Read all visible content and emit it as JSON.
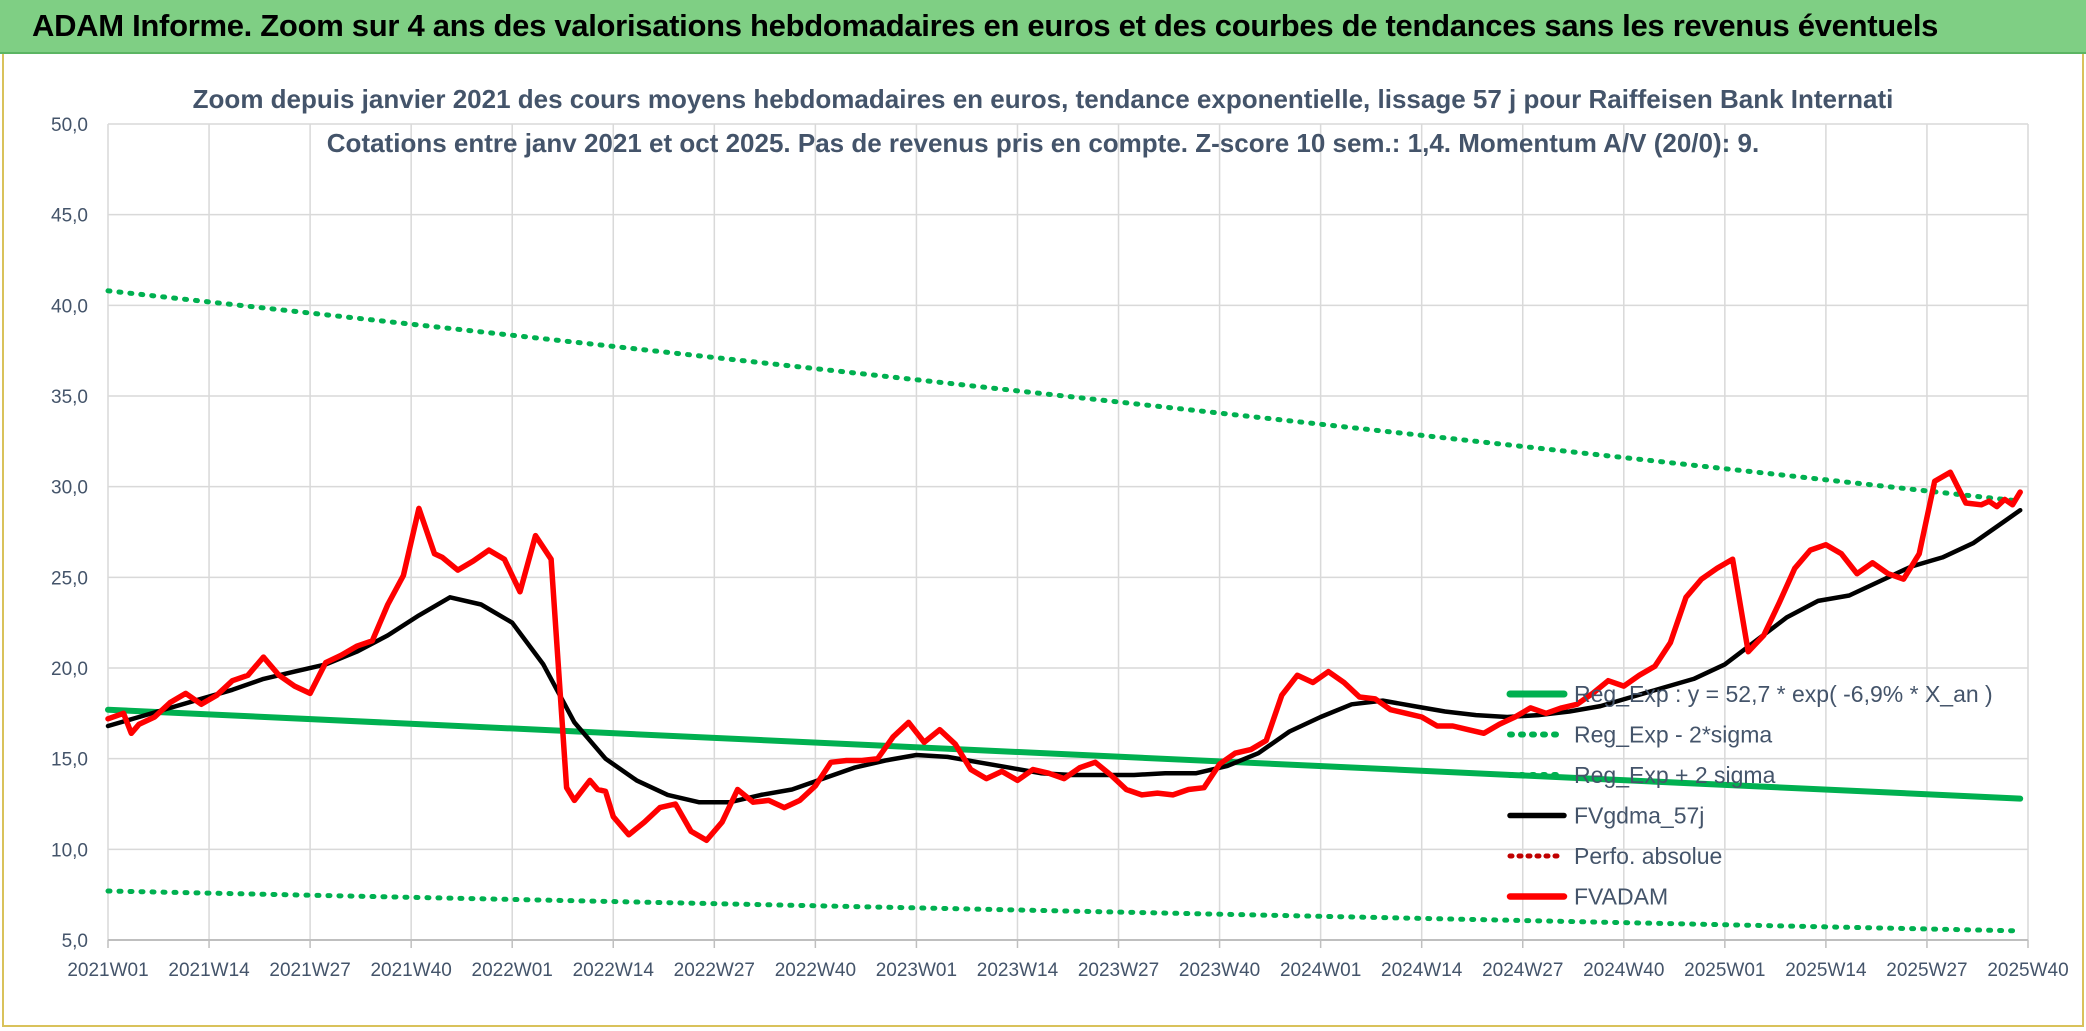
{
  "banner": {
    "title": "ADAM Informe. Zoom sur 4 ans des valorisations hebdomadaires en euros et des courbes de tendances sans les revenus éventuels"
  },
  "colors": {
    "banner_bg": "#7fcf84",
    "axis_text": "#44546a",
    "grid": "#d9d9d9",
    "reg_exp": "#00b050",
    "fvgdma": "#000000",
    "fvadam": "#ff0000",
    "perfo": "#c00000"
  },
  "chart_data": {
    "type": "line",
    "title": "Zoom depuis janvier 2021 des cours moyens hebdomadaires en euros, tendance exponentielle, lissage 57 j pour Raiffeisen Bank Internati",
    "subtitle": "Cotations entre janv 2021 et oct 2025. Pas de revenus pris en compte. Z-score 10 sem.: 1,4. Momentum A/V (20/0): 9.",
    "xlabel": "",
    "ylabel": "",
    "ylim": [
      5,
      50
    ],
    "yticks": [
      "5,0",
      "10,0",
      "15,0",
      "20,0",
      "25,0",
      "30,0",
      "35,0",
      "40,0",
      "45,0",
      "50,0"
    ],
    "x_range_weeks": [
      0,
      246
    ],
    "x_ticks": [
      {
        "label": "2021W01",
        "week": 0
      },
      {
        "label": "2021W14",
        "week": 13
      },
      {
        "label": "2021W27",
        "week": 26
      },
      {
        "label": "2021W40",
        "week": 39
      },
      {
        "label": "2022W01",
        "week": 52
      },
      {
        "label": "2022W14",
        "week": 65
      },
      {
        "label": "2022W27",
        "week": 78
      },
      {
        "label": "2022W40",
        "week": 91
      },
      {
        "label": "2023W01",
        "week": 104
      },
      {
        "label": "2023W14",
        "week": 117
      },
      {
        "label": "2023W27",
        "week": 130
      },
      {
        "label": "2023W40",
        "week": 143
      },
      {
        "label": "2024W01",
        "week": 156
      },
      {
        "label": "2024W14",
        "week": 169
      },
      {
        "label": "2024W27",
        "week": 182
      },
      {
        "label": "2024W40",
        "week": 195
      },
      {
        "label": "2025W01",
        "week": 208
      },
      {
        "label": "2025W14",
        "week": 221
      },
      {
        "label": "2025W27",
        "week": 234
      },
      {
        "label": "2025W40",
        "week": 247
      }
    ],
    "series": [
      {
        "name": "Reg_Exp : y = 52,7 * exp( -6,9% * X_an )",
        "style": "solid-thick",
        "color": "#00b050",
        "x": [
          0,
          246
        ],
        "values": [
          17.7,
          12.8
        ]
      },
      {
        "name": "Reg_Exp - 2*sigma",
        "style": "dotted",
        "color": "#00b050",
        "x": [
          0,
          246
        ],
        "values": [
          7.7,
          5.5
        ]
      },
      {
        "name": "Reg_Exp + 2 sigma",
        "style": "dotted",
        "color": "#00b050",
        "x": [
          0,
          246
        ],
        "values": [
          40.8,
          29.2
        ]
      },
      {
        "name": "FVgdma_57j",
        "style": "solid",
        "color": "#000000",
        "x": [
          0,
          4,
          8,
          12,
          16,
          20,
          24,
          28,
          32,
          36,
          40,
          44,
          48,
          52,
          56,
          60,
          64,
          68,
          72,
          76,
          80,
          84,
          88,
          92,
          96,
          100,
          104,
          108,
          112,
          116,
          120,
          124,
          128,
          132,
          136,
          140,
          144,
          148,
          152,
          156,
          160,
          164,
          168,
          172,
          176,
          180,
          184,
          188,
          192,
          196,
          200,
          204,
          208,
          212,
          216,
          220,
          224,
          228,
          232,
          236,
          240,
          244,
          246
        ],
        "values": [
          16.8,
          17.3,
          17.8,
          18.3,
          18.8,
          19.4,
          19.8,
          20.2,
          20.9,
          21.8,
          22.9,
          23.9,
          23.5,
          22.5,
          20.2,
          17.0,
          15.0,
          13.8,
          13.0,
          12.6,
          12.6,
          13.0,
          13.3,
          13.9,
          14.5,
          14.9,
          15.2,
          15.1,
          14.8,
          14.5,
          14.2,
          14.1,
          14.1,
          14.1,
          14.2,
          14.2,
          14.6,
          15.3,
          16.5,
          17.3,
          18.0,
          18.2,
          17.9,
          17.6,
          17.4,
          17.3,
          17.4,
          17.6,
          17.9,
          18.4,
          18.9,
          19.4,
          20.2,
          21.5,
          22.8,
          23.7,
          24.0,
          24.8,
          25.6,
          26.1,
          26.9,
          28.1,
          28.7
        ]
      },
      {
        "name": "Perfo. absolue",
        "style": "dotted",
        "color": "#c00000",
        "x": [],
        "values": []
      },
      {
        "name": "FVADAM",
        "style": "solid-thick",
        "color": "#ff0000",
        "x": [
          0,
          2,
          3,
          4,
          6,
          8,
          10,
          12,
          14,
          16,
          18,
          20,
          22,
          24,
          26,
          28,
          30,
          32,
          34,
          36,
          38,
          40,
          42,
          43,
          45,
          47,
          49,
          51,
          53,
          55,
          57,
          59,
          60,
          62,
          63,
          64,
          65,
          67,
          69,
          71,
          73,
          75,
          77,
          79,
          81,
          83,
          85,
          87,
          89,
          91,
          93,
          95,
          97,
          99,
          101,
          103,
          105,
          107,
          109,
          111,
          113,
          115,
          117,
          119,
          121,
          123,
          125,
          127,
          129,
          131,
          133,
          135,
          137,
          139,
          141,
          143,
          145,
          147,
          149,
          151,
          153,
          155,
          157,
          159,
          161,
          163,
          165,
          167,
          169,
          171,
          173,
          175,
          177,
          179,
          181,
          183,
          185,
          187,
          189,
          191,
          193,
          195,
          197,
          199,
          201,
          203,
          205,
          207,
          209,
          211,
          213,
          215,
          217,
          219,
          221,
          223,
          225,
          227,
          229,
          231,
          233,
          235,
          237,
          239,
          241,
          242,
          243,
          244,
          245,
          246
        ],
        "values": [
          17.2,
          17.5,
          16.4,
          16.9,
          17.3,
          18.1,
          18.6,
          18.0,
          18.5,
          19.3,
          19.6,
          20.6,
          19.6,
          19.0,
          18.6,
          20.3,
          20.7,
          21.2,
          21.5,
          23.5,
          25.1,
          28.8,
          26.3,
          26.1,
          25.4,
          25.9,
          26.5,
          26.0,
          24.2,
          27.3,
          26.0,
          13.4,
          12.7,
          13.8,
          13.3,
          13.2,
          11.8,
          10.8,
          11.5,
          12.3,
          12.5,
          11.0,
          10.5,
          11.5,
          13.3,
          12.6,
          12.7,
          12.3,
          12.7,
          13.5,
          14.8,
          14.9,
          14.9,
          15.0,
          16.2,
          17.0,
          15.9,
          16.6,
          15.8,
          14.4,
          13.9,
          14.3,
          13.8,
          14.4,
          14.2,
          13.9,
          14.5,
          14.8,
          14.1,
          13.3,
          13.0,
          13.1,
          13.0,
          13.3,
          13.4,
          14.7,
          15.3,
          15.5,
          16.0,
          18.5,
          19.6,
          19.2,
          19.8,
          19.2,
          18.4,
          18.3,
          17.7,
          17.5,
          17.3,
          16.8,
          16.8,
          16.6,
          16.4,
          16.9,
          17.3,
          17.8,
          17.5,
          17.8,
          18.0,
          18.6,
          19.3,
          19.0,
          19.6,
          20.1,
          21.4,
          23.9,
          24.9,
          25.5,
          26.0,
          20.9,
          21.8,
          23.6,
          25.5,
          26.5,
          26.8,
          26.3,
          25.2,
          25.8,
          25.2,
          24.9,
          26.3,
          30.3,
          30.8,
          29.1,
          29.0,
          29.2,
          28.9,
          29.3,
          29.0,
          29.7
        ]
      }
    ],
    "legend": {
      "position": "right-center",
      "entries": [
        "Reg_Exp : y = 52,7 * exp( -6,9% * X_an )",
        "Reg_Exp - 2*sigma",
        "Reg_Exp + 2 sigma",
        "FVgdma_57j",
        "Perfo. absolue",
        "FVADAM"
      ]
    }
  }
}
